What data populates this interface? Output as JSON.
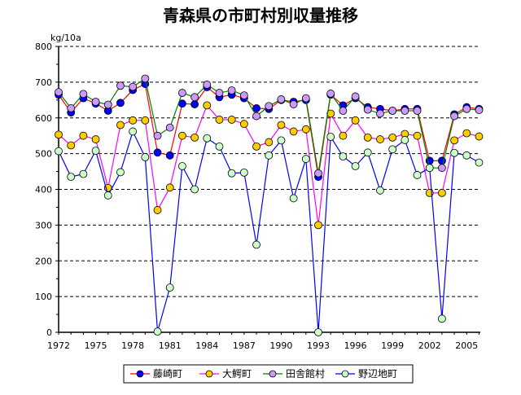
{
  "chart_data": {
    "type": "line",
    "title": "青森県の市町村別収量推移",
    "ylabel": "kg/10a",
    "xlabel": "",
    "ylim": [
      0,
      800
    ],
    "yticks": [
      0,
      100,
      200,
      300,
      400,
      500,
      600,
      700,
      800
    ],
    "xticks": [
      1972,
      1975,
      1978,
      1981,
      1984,
      1987,
      1990,
      1993,
      1996,
      1999,
      2002,
      2005
    ],
    "grid": "horizontal dashed",
    "legend": "bottom",
    "x": [
      1972,
      1973,
      1974,
      1975,
      1976,
      1977,
      1978,
      1979,
      1980,
      1981,
      1982,
      1983,
      1984,
      1985,
      1986,
      1987,
      1988,
      1989,
      1990,
      1991,
      1992,
      1993,
      1994,
      1995,
      1996,
      1997,
      1998,
      1999,
      2000,
      2001,
      2002,
      2003,
      2004,
      2005,
      2006
    ],
    "series": [
      {
        "name": "藤崎町",
        "line_color": "#ff0000",
        "marker_color": "#0000ff",
        "values": [
          665,
          615,
          655,
          640,
          620,
          642,
          678,
          695,
          503,
          495,
          640,
          638,
          686,
          658,
          665,
          655,
          627,
          625,
          650,
          645,
          650,
          435,
          665,
          635,
          655,
          630,
          625,
          620,
          625,
          625,
          480,
          480,
          610,
          630,
          625
        ]
      },
      {
        "name": "大鰐町",
        "line_color": "#ff00ff",
        "marker_color": "#ffcc00",
        "values": [
          553,
          523,
          550,
          540,
          404,
          580,
          593,
          593,
          342,
          405,
          550,
          545,
          635,
          595,
          595,
          583,
          520,
          532,
          580,
          562,
          568,
          300,
          612,
          550,
          593,
          545,
          540,
          545,
          555,
          550,
          390,
          390,
          537,
          557,
          548
        ]
      },
      {
        "name": "田舎館村",
        "line_color": "#008000",
        "marker_color": "#cc99ff",
        "values": [
          672,
          627,
          667,
          645,
          637,
          690,
          687,
          710,
          550,
          573,
          670,
          658,
          693,
          670,
          677,
          663,
          605,
          633,
          652,
          638,
          655,
          445,
          668,
          620,
          660,
          623,
          612,
          620,
          620,
          620,
          460,
          460,
          605,
          625,
          622
        ]
      },
      {
        "name": "野辺地町",
        "line_color": "#0000ff",
        "marker_color": "#ccffcc",
        "values": [
          507,
          435,
          443,
          508,
          383,
          448,
          562,
          490,
          2,
          125,
          465,
          400,
          543,
          520,
          445,
          447,
          245,
          495,
          537,
          375,
          485,
          0,
          547,
          492,
          465,
          503,
          397,
          512,
          538,
          440,
          460,
          38,
          502,
          495,
          475
        ]
      }
    ]
  }
}
